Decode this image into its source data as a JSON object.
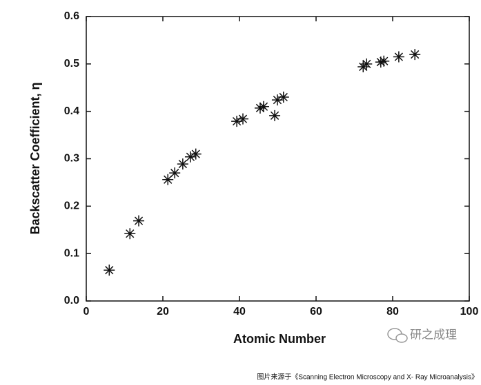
{
  "chart_data": {
    "type": "scatter",
    "xlabel": "Atomic Number",
    "ylabel": "Backscatter Coefficient, η",
    "x": [
      6,
      11.4,
      13.7,
      21.3,
      23.1,
      25.2,
      27.2,
      28.6,
      39.3,
      40.9,
      45.4,
      46.3,
      49.2,
      49.9,
      51.5,
      72.3,
      73.2,
      76.9,
      77.7,
      81.6,
      85.8
    ],
    "values": [
      0.065,
      0.142,
      0.169,
      0.256,
      0.27,
      0.289,
      0.304,
      0.31,
      0.379,
      0.384,
      0.407,
      0.41,
      0.391,
      0.424,
      0.43,
      0.494,
      0.5,
      0.504,
      0.506,
      0.515,
      0.52
    ],
    "color": "#111111",
    "xlim": [
      0,
      100
    ],
    "xticks": [
      0,
      20,
      40,
      60,
      80,
      100
    ],
    "ylim": [
      0,
      0.6
    ],
    "yticks": [
      {
        "value": 0,
        "label": "0.0"
      },
      0.1,
      0.2,
      0.3,
      0.4,
      0.5,
      0.6
    ],
    "grid": false
  },
  "watermark": "研之成理",
  "source": "图片来源于《Scanning Electron Microscopy and X- Ray Microanalysis》"
}
